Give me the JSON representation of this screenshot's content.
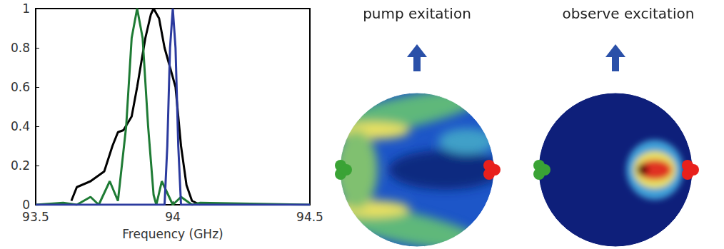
{
  "chart_data": {
    "type": "line",
    "x_label": "Frequency (GHz)",
    "xlim": [
      93.5,
      94.5
    ],
    "xticks": [
      93.5,
      94,
      94.5
    ],
    "ylim": [
      0,
      1
    ],
    "yticks": [
      0,
      0.2,
      0.4,
      0.6,
      0.8,
      1
    ],
    "grid": false,
    "series": [
      {
        "color": "#000000",
        "x": [
          93.63,
          93.65,
          93.7,
          93.75,
          93.78,
          93.8,
          93.82,
          93.85,
          93.87,
          93.9,
          93.92,
          93.93,
          93.95,
          93.97,
          93.99,
          94.01,
          94.03,
          94.05,
          94.07,
          94.1
        ],
        "values": [
          0.02,
          0.09,
          0.12,
          0.17,
          0.3,
          0.37,
          0.38,
          0.45,
          0.6,
          0.85,
          0.97,
          1.0,
          0.95,
          0.8,
          0.7,
          0.6,
          0.3,
          0.1,
          0.02,
          0.0
        ]
      },
      {
        "color": "#1e7b34",
        "x": [
          93.5,
          93.6,
          93.65,
          93.7,
          93.73,
          93.77,
          93.8,
          93.83,
          93.85,
          93.87,
          93.89,
          93.91,
          93.93,
          93.94,
          93.96,
          94.0,
          94.03,
          94.07,
          94.1,
          94.5
        ],
        "values": [
          0.0,
          0.01,
          0.0,
          0.04,
          0.0,
          0.12,
          0.02,
          0.4,
          0.85,
          1.0,
          0.85,
          0.4,
          0.05,
          0.0,
          0.12,
          0.0,
          0.04,
          0.0,
          0.01,
          0.0
        ]
      },
      {
        "color": "#2b3a9e",
        "x": [
          93.5,
          93.97,
          93.98,
          93.99,
          94.0,
          94.01,
          94.02,
          94.03,
          94.5
        ],
        "values": [
          0.0,
          0.0,
          0.3,
          0.8,
          1.0,
          0.8,
          0.3,
          0.0,
          0.0
        ]
      }
    ]
  },
  "panels": [
    {
      "title": "pump exitation"
    },
    {
      "title": "observe excitation"
    }
  ]
}
